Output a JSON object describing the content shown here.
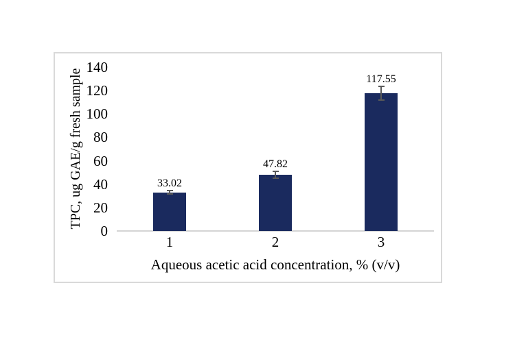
{
  "page": {
    "background": "#ffffff"
  },
  "chart_data": {
    "type": "bar",
    "title": "",
    "categories": [
      "1",
      "2",
      "3"
    ],
    "values": [
      33.02,
      47.82,
      117.55
    ],
    "data_labels": [
      "33.02",
      "47.82",
      "117.55"
    ],
    "error_bars": [
      1.5,
      3.0,
      5.8
    ],
    "xlabel": "Aqueous acetic acid concentration, % (v/v)",
    "ylabel": "TPC, ug GAE/g fresh sample",
    "ylim": [
      0,
      140
    ],
    "yticks": [
      0,
      20,
      40,
      60,
      80,
      100,
      120,
      140
    ],
    "grid": false,
    "legend": "none",
    "colors": {
      "bar_fill": "#1a2a5e",
      "error_bar": "#595959",
      "axis_line": "#d4d4d4",
      "frame_border": "#d9d9d9",
      "text": "#000000"
    }
  }
}
